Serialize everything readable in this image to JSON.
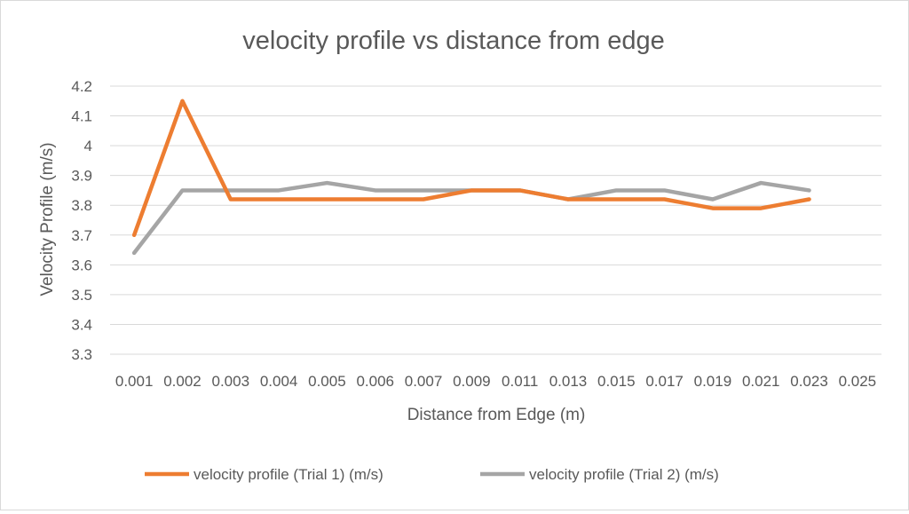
{
  "chart_data": {
    "type": "line",
    "title": "velocity profile vs distance from edge",
    "xlabel": "Distance from Edge (m)",
    "ylabel": "Velocity Profile (m/s)",
    "categories": [
      "0.001",
      "0.002",
      "0.003",
      "0.004",
      "0.005",
      "0.006",
      "0.007",
      "0.009",
      "0.011",
      "0.013",
      "0.015",
      "0.017",
      "0.019",
      "0.021",
      "0.023",
      "0.025"
    ],
    "ylim": [
      3.3,
      4.2
    ],
    "yticks": [
      "3.3",
      "3.4",
      "3.5",
      "3.6",
      "3.7",
      "3.8",
      "3.9",
      "4",
      "4.1",
      "4.2"
    ],
    "grid": true,
    "legend_position": "bottom",
    "series": [
      {
        "name": "velocity profile (Trial 1) (m/s)",
        "color": "#ed7d31",
        "values": [
          3.7,
          4.15,
          3.82,
          3.82,
          3.82,
          3.82,
          3.82,
          3.85,
          3.85,
          3.82,
          3.82,
          3.82,
          3.79,
          3.79,
          3.82,
          null
        ]
      },
      {
        "name": "velocity profile (Trial 2) (m/s)",
        "color": "#a5a5a5",
        "values": [
          3.64,
          3.85,
          3.85,
          3.85,
          3.875,
          3.85,
          3.85,
          3.85,
          3.85,
          3.82,
          3.85,
          3.85,
          3.82,
          3.875,
          3.85,
          null
        ]
      }
    ]
  }
}
